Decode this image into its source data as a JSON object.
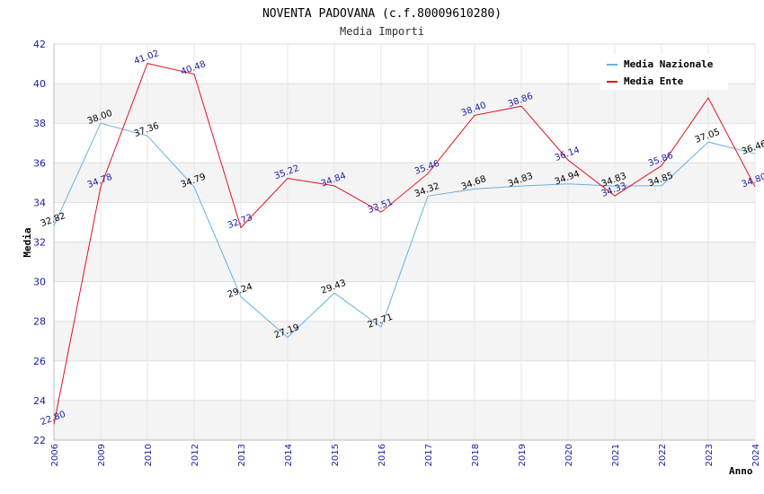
{
  "chart_data": {
    "type": "line",
    "title": "NOVENTA PADOVANA (c.f.80009610280)",
    "subtitle": "Media Importi",
    "xlabel": "Anno",
    "ylabel": "Media",
    "categories": [
      "2006",
      "2009",
      "2010",
      "2012",
      "2013",
      "2014",
      "2015",
      "2016",
      "2017",
      "2018",
      "2019",
      "2020",
      "2021",
      "2022",
      "2023",
      "2024"
    ],
    "ylim": [
      22,
      42
    ],
    "yticks": [
      "22",
      "24",
      "26",
      "28",
      "30",
      "32",
      "34",
      "36",
      "38",
      "40",
      "42"
    ],
    "series": [
      {
        "name": "Media Nazionale",
        "color": "#6aaee6",
        "values": [
          32.82,
          38.0,
          37.36,
          34.79,
          29.24,
          27.19,
          29.43,
          27.71,
          34.32,
          34.68,
          34.83,
          34.94,
          34.83,
          34.85,
          37.05,
          36.46
        ],
        "labels": [
          "32.82",
          "38.00",
          "37.36",
          "34.79",
          "29.24",
          "27.19",
          "29.43",
          "27.71",
          "34.32",
          "34.68",
          "34.83",
          "34.94",
          "34.83",
          "34.85",
          "37.05",
          "36.46"
        ]
      },
      {
        "name": "Media Ente",
        "color": "#e0141e",
        "values": [
          22.8,
          34.78,
          41.02,
          40.48,
          32.73,
          35.22,
          34.84,
          33.51,
          35.46,
          38.4,
          38.86,
          36.14,
          34.33,
          35.86,
          39.28,
          34.8
        ],
        "labels": [
          "22.80",
          "34.78",
          "41.02",
          "40.48",
          "32.73",
          "35.22",
          "34.84",
          "33.51",
          "35.46",
          "38.40",
          "38.86",
          "36.14",
          "34.33",
          "35.86",
          "",
          "34.80"
        ]
      }
    ],
    "legend_position": "top-right",
    "grid": true
  }
}
